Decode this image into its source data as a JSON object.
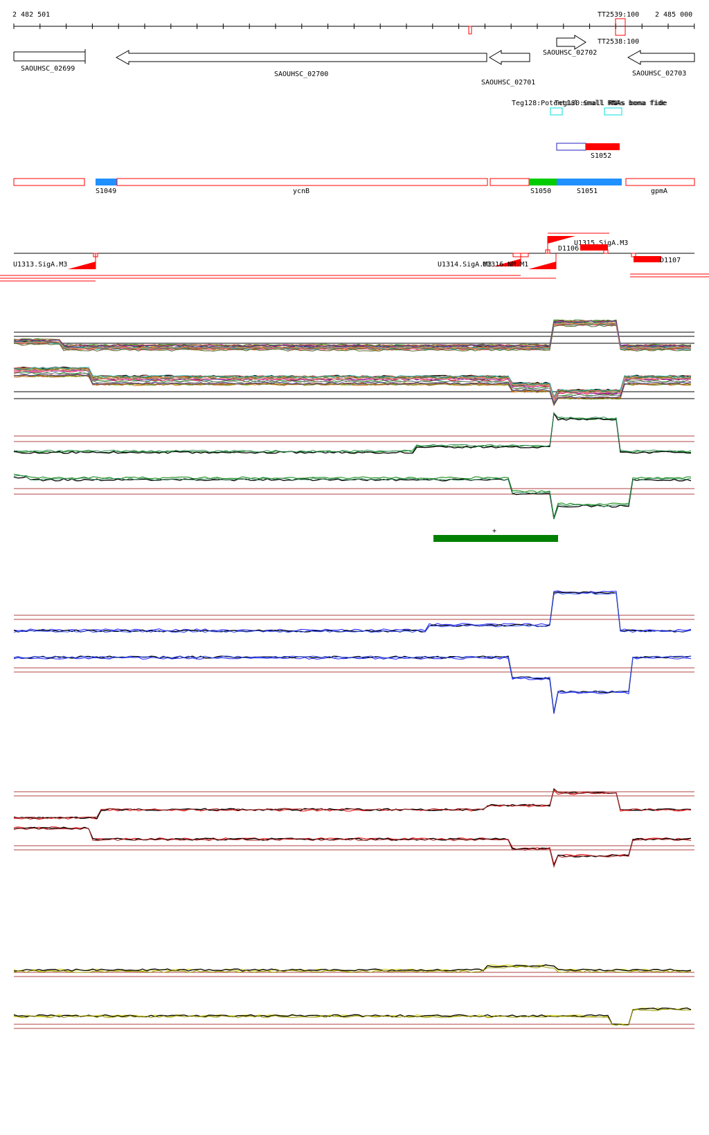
{
  "colors": {
    "red": "#ff0000",
    "blue": "#1e90ff",
    "green": "#00cc00",
    "cyan": "#00e0e0",
    "dark_green": "#008000",
    "navy": "#1a1aff",
    "brown": "#b04040",
    "yellow": "#cccc00"
  },
  "ruler": {
    "start_label": "2 482 501",
    "end_label": "2 485 000",
    "terminators": [
      "TT2539:100",
      "TT2538:100"
    ]
  },
  "genes": [
    {
      "label": "SAOUHSC_02699",
      "strand": "+"
    },
    {
      "label": "SAOUHSC_02700",
      "strand": "-"
    },
    {
      "label": "SAOUHSC_02701",
      "strand": "-"
    },
    {
      "label": "SAOUHSC_02702",
      "strand": "+"
    },
    {
      "label": "SAOUHSC_02703",
      "strand": "-"
    }
  ],
  "small_rna_labels": [
    "Teg128:Potential small RNAs bona fide",
    "Teg130:Small RNAs bona fide"
  ],
  "segment_S1052": {
    "label": "S1052"
  },
  "segments": [
    {
      "label": "S1049",
      "color": "blue"
    },
    {
      "label": "ycnB",
      "color": "outline"
    },
    {
      "label": "S1050",
      "color": "green"
    },
    {
      "label": "S1051",
      "color": "blue"
    },
    {
      "label": "gpmA",
      "color": "outline"
    }
  ],
  "promoters": [
    "U1313.SigA.M3",
    "U1314.SigA.M3",
    "U1316.NM.M1",
    "U1315.SigA.M3",
    "D1106",
    "D1107"
  ],
  "expression_marker": "+"
}
